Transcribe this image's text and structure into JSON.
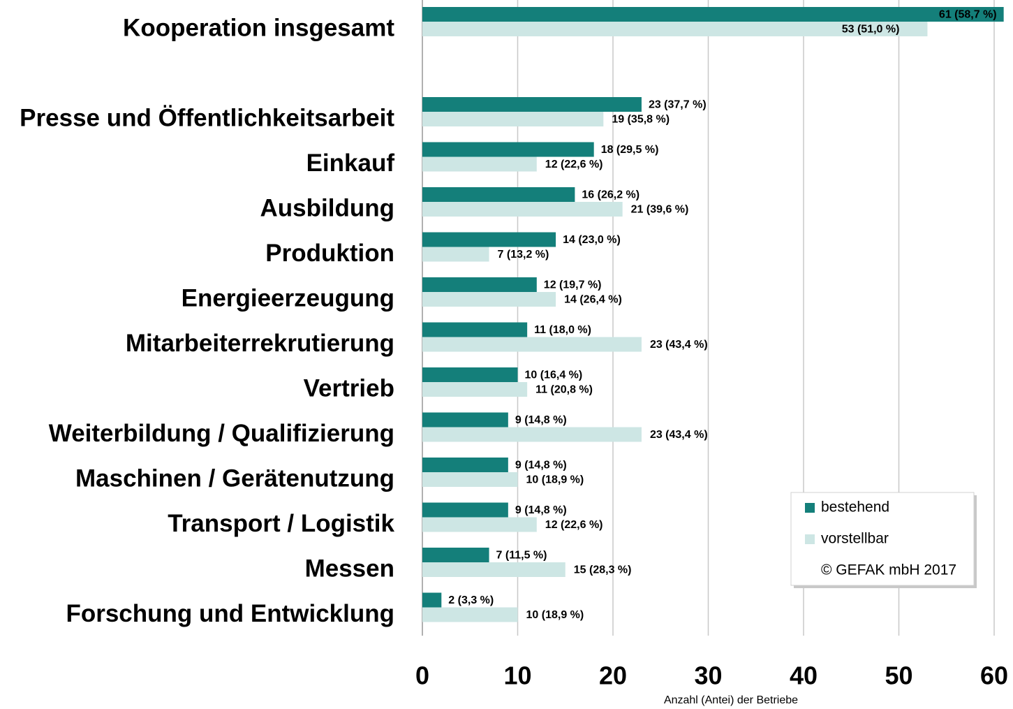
{
  "chart_data": {
    "type": "hbar",
    "categories": [
      "Kooperation insgesamt",
      null,
      "Presse und Öffentlichkeitsarbeit",
      "Einkauf",
      "Ausbildung",
      "Produktion",
      "Energieerzeugung",
      "Mitarbeiterrekrutierung",
      "Vertrieb",
      "Weiterbildung / Qualifizierung",
      "Maschinen / Gerätenutzung",
      "Transport / Logistik",
      "Messen",
      "Forschung und Entwicklung"
    ],
    "series": [
      {
        "name": "bestehend",
        "color": "#147f7a",
        "values": [
          61,
          null,
          23,
          18,
          16,
          14,
          12,
          11,
          10,
          9,
          9,
          9,
          7,
          2
        ],
        "value_labels": [
          "61 (58,7 %)",
          null,
          "23 (37,7 %)",
          "18 (29,5 %)",
          "16 (26,2 %)",
          "14 (23,0 %)",
          "12 (19,7 %)",
          "11 (18,0 %)",
          "10 (16,4 %)",
          "9 (14,8 %)",
          "9 (14,8 %)",
          "9 (14,8 %)",
          "7 (11,5 %)",
          "2 (3,3 %)"
        ]
      },
      {
        "name": "vorstellbar",
        "color": "#cde6e4",
        "values": [
          53,
          null,
          19,
          12,
          21,
          7,
          14,
          23,
          11,
          23,
          10,
          12,
          15,
          10
        ],
        "value_labels": [
          "53 (51,0 %)",
          null,
          "19 (35,8 %)",
          "12 (22,6 %)",
          "21 (39,6 %)",
          "7 (13,2 %)",
          "14 (26,4 %)",
          "23 (43,4 %)",
          "11 (20,8 %)",
          "23 (43,4 %)",
          "10 (18,9 %)",
          "12 (22,6 %)",
          "15 (28,3 %)",
          "10 (18,9 %)"
        ]
      }
    ],
    "xlim": [
      0,
      60
    ],
    "xticks": [
      0,
      10,
      20,
      30,
      40,
      50,
      60
    ],
    "xlabel": "Anzahl (Antei) der Betriebe",
    "note": "© GEFAK mbH 2017",
    "grid": true,
    "legend": "lower right"
  }
}
